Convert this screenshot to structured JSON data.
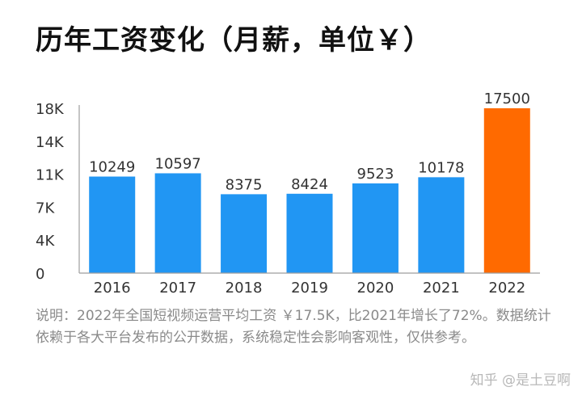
{
  "header": {
    "title": "历年工资变化（月薪，单位￥）"
  },
  "colors": {
    "bar": "#2196F3",
    "highlight": "#FF6A00",
    "axis": "#9e9e9e",
    "text": "#333333"
  },
  "chart_data": {
    "type": "bar",
    "title": "历年工资变化（月薪，单位￥）",
    "categories": [
      "2016",
      "2017",
      "2018",
      "2019",
      "2020",
      "2021",
      "2022"
    ],
    "values": [
      10249,
      10597,
      8375,
      8424,
      9523,
      10178,
      17500
    ],
    "value_labels": [
      "10249",
      "10597",
      "8375",
      "8424",
      "9523",
      "10178",
      "17500"
    ],
    "highlight_index": 6,
    "y_ticks": [
      0,
      3500,
      7000,
      10500,
      14000,
      17500
    ],
    "y_tick_labels": [
      "0",
      "4K",
      "7K",
      "11K",
      "14K",
      "18K"
    ],
    "ylim": [
      0,
      17500
    ],
    "xlabel": "",
    "ylabel": "",
    "grid": false,
    "legend": "none"
  },
  "footnote": "说明：2022年全国短视频运营平均工资 ￥17.5K，比2021年增长了72%。数据统计依赖于各大平台发布的公开数据，系统稳定性会影响客观性，仅供参考。",
  "watermark": "知乎 @是土豆啊"
}
